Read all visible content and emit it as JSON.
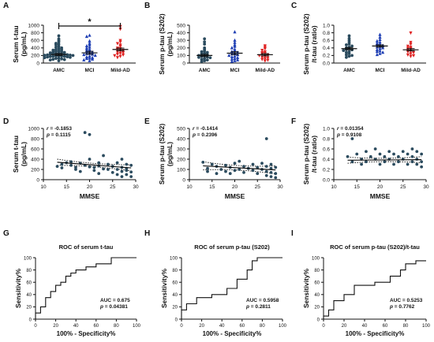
{
  "colors": {
    "amc": "#2b4b5e",
    "mci": "#1f3fb4",
    "ad": "#e02424",
    "axis": "#111111",
    "line": "#111111"
  },
  "chart_data": [
    {
      "panel": "A",
      "type": "scatter",
      "ylabel": [
        "Serum t-tau",
        "(pg/mL)"
      ],
      "categories": [
        "AMC",
        "MCI",
        "Mild-AD"
      ],
      "ylim": [
        0,
        1000
      ],
      "yticks": [
        0,
        200,
        400,
        600,
        800,
        1000
      ],
      "significance": {
        "from": "AMC",
        "to": "Mild-AD",
        "label": "*"
      },
      "series": [
        {
          "group": "AMC",
          "marker": "circle",
          "mean": 225,
          "sem": 25,
          "values": [
            720,
            640,
            600,
            560,
            520,
            500,
            480,
            440,
            420,
            400,
            380,
            360,
            350,
            340,
            320,
            310,
            300,
            290,
            280,
            270,
            260,
            250,
            245,
            240,
            235,
            230,
            220,
            215,
            210,
            205,
            200,
            195,
            190,
            185,
            180,
            175,
            170,
            165,
            160,
            150,
            140,
            130,
            120,
            110,
            100,
            90,
            80,
            60
          ]
        },
        {
          "group": "MCI",
          "marker": "triangle",
          "mean": 270,
          "sem": 40,
          "values": [
            730,
            700,
            580,
            520,
            480,
            450,
            420,
            390,
            360,
            340,
            320,
            300,
            280,
            260,
            250,
            230,
            220,
            200,
            180,
            160,
            140,
            130,
            120,
            100,
            80,
            60
          ]
        },
        {
          "group": "Mild-AD",
          "marker": "inverted-triangle",
          "mean": 360,
          "sem": 35,
          "values": [
            970,
            900,
            600,
            560,
            520,
            480,
            440,
            400,
            380,
            360,
            340,
            320,
            300,
            280,
            260,
            240,
            220,
            200,
            180,
            150
          ]
        }
      ]
    },
    {
      "panel": "B",
      "type": "scatter",
      "ylabel": [
        "Serum p-tau (S202)",
        "(pg/mL)"
      ],
      "categories": [
        "AMC",
        "MCI",
        "Mild-AD"
      ],
      "ylim": [
        0,
        500
      ],
      "yticks": [
        0,
        100,
        200,
        300,
        400,
        500
      ],
      "series": [
        {
          "group": "AMC",
          "marker": "circle",
          "mean": 100,
          "sem": 15,
          "values": [
            320,
            280,
            250,
            200,
            180,
            160,
            150,
            140,
            130,
            120,
            110,
            100,
            95,
            90,
            80,
            75,
            70,
            60,
            50,
            40,
            30,
            20
          ]
        },
        {
          "group": "MCI",
          "marker": "triangle",
          "mean": 130,
          "sem": 20,
          "values": [
            410,
            300,
            270,
            240,
            220,
            200,
            180,
            160,
            150,
            140,
            130,
            120,
            110,
            100,
            90,
            80,
            70,
            60,
            50,
            40,
            30,
            20
          ]
        },
        {
          "group": "Mild-AD",
          "marker": "inverted-triangle",
          "mean": 110,
          "sem": 15,
          "values": [
            230,
            210,
            190,
            170,
            150,
            140,
            130,
            120,
            110,
            100,
            90,
            80,
            70,
            60,
            50,
            40,
            30
          ]
        }
      ]
    },
    {
      "panel": "C",
      "type": "scatter",
      "ylabel": [
        "Serum p-tau (S202)",
        "/t-tau (ratio)"
      ],
      "categories": [
        "AMC",
        "MCI",
        "Mild-AD"
      ],
      "ylim": [
        0,
        1.0
      ],
      "yticks": [
        0.0,
        0.2,
        0.4,
        0.6,
        0.8,
        1.0
      ],
      "series": [
        {
          "group": "AMC",
          "marker": "circle",
          "mean": 0.38,
          "sem": 0.03,
          "values": [
            0.72,
            0.65,
            0.6,
            0.55,
            0.5,
            0.48,
            0.45,
            0.42,
            0.4,
            0.38,
            0.36,
            0.35,
            0.33,
            0.3,
            0.28,
            0.25,
            0.22,
            0.2,
            0.18,
            0.15
          ]
        },
        {
          "group": "MCI",
          "marker": "triangle",
          "mean": 0.45,
          "sem": 0.03,
          "values": [
            0.75,
            0.68,
            0.62,
            0.58,
            0.55,
            0.52,
            0.5,
            0.48,
            0.46,
            0.44,
            0.42,
            0.4,
            0.38,
            0.35,
            0.32,
            0.3,
            0.28,
            0.25,
            0.22
          ]
        },
        {
          "group": "Mild-AD",
          "marker": "inverted-triangle",
          "mean": 0.35,
          "sem": 0.03,
          "values": [
            0.8,
            0.55,
            0.5,
            0.45,
            0.42,
            0.4,
            0.38,
            0.35,
            0.32,
            0.3,
            0.28,
            0.25,
            0.22,
            0.2,
            0.18
          ]
        }
      ]
    },
    {
      "panel": "D",
      "type": "scatter",
      "ylabel": [
        "Serum t-tau",
        "(pg/mL)"
      ],
      "xlabel": "MMSE",
      "xlim": [
        10,
        30
      ],
      "xticks": [
        10,
        15,
        20,
        25,
        30
      ],
      "ylim": [
        0,
        1000
      ],
      "yticks": [
        0,
        200,
        400,
        600,
        800,
        1000
      ],
      "stats": [
        "r  = -0.1853",
        "p  = 0.1115"
      ],
      "fit": {
        "x": [
          13,
          29
        ],
        "y": [
          340,
          230
        ],
        "band": [
          60,
          55
        ]
      },
      "points": [
        [
          13,
          260
        ],
        [
          14,
          300
        ],
        [
          14,
          230
        ],
        [
          15,
          330
        ],
        [
          16,
          280
        ],
        [
          16,
          350
        ],
        [
          17,
          240
        ],
        [
          17,
          200
        ],
        [
          18,
          320
        ],
        [
          18,
          160
        ],
        [
          19,
          920
        ],
        [
          19,
          280
        ],
        [
          20,
          400
        ],
        [
          20,
          250
        ],
        [
          20,
          880
        ],
        [
          21,
          240
        ],
        [
          21,
          180
        ],
        [
          22,
          330
        ],
        [
          22,
          270
        ],
        [
          22,
          120
        ],
        [
          23,
          210
        ],
        [
          23,
          470
        ],
        [
          24,
          300
        ],
        [
          24,
          200
        ],
        [
          25,
          260
        ],
        [
          25,
          140
        ],
        [
          26,
          330
        ],
        [
          26,
          200
        ],
        [
          26,
          100
        ],
        [
          27,
          400
        ],
        [
          27,
          240
        ],
        [
          27,
          160
        ],
        [
          27,
          60
        ],
        [
          28,
          300
        ],
        [
          28,
          220
        ],
        [
          28,
          180
        ],
        [
          28,
          100
        ],
        [
          29,
          280
        ],
        [
          29,
          150
        ],
        [
          29,
          60
        ]
      ]
    },
    {
      "panel": "E",
      "type": "scatter",
      "ylabel": [
        "Serum p-tau (S202)",
        "(pg/mL)"
      ],
      "xlabel": "MMSE",
      "xlim": [
        10,
        30
      ],
      "xticks": [
        10,
        15,
        20,
        25,
        30
      ],
      "ylim": [
        0,
        500
      ],
      "yticks": [
        0,
        100,
        200,
        300,
        400,
        500
      ],
      "stats": [
        "r  = -0.1414",
        "p  = 0.2396"
      ],
      "fit": {
        "x": [
          13,
          29
        ],
        "y": [
          135,
          95
        ],
        "band": [
          40,
          40
        ]
      },
      "points": [
        [
          13,
          170
        ],
        [
          14,
          110
        ],
        [
          14,
          80
        ],
        [
          15,
          150
        ],
        [
          16,
          130
        ],
        [
          16,
          60
        ],
        [
          17,
          100
        ],
        [
          18,
          140
        ],
        [
          18,
          80
        ],
        [
          19,
          120
        ],
        [
          19,
          60
        ],
        [
          20,
          160
        ],
        [
          20,
          90
        ],
        [
          21,
          180
        ],
        [
          21,
          100
        ],
        [
          22,
          130
        ],
        [
          22,
          70
        ],
        [
          23,
          110
        ],
        [
          24,
          150
        ],
        [
          24,
          90
        ],
        [
          25,
          120
        ],
        [
          25,
          60
        ],
        [
          26,
          160
        ],
        [
          26,
          100
        ],
        [
          27,
          400
        ],
        [
          27,
          130
        ],
        [
          27,
          80
        ],
        [
          27,
          40
        ],
        [
          28,
          150
        ],
        [
          28,
          110
        ],
        [
          28,
          70
        ],
        [
          28,
          30
        ],
        [
          29,
          120
        ],
        [
          29,
          60
        ],
        [
          29,
          20
        ]
      ]
    },
    {
      "panel": "F",
      "type": "scatter",
      "ylabel": [
        "Serum p-tau (S202)",
        "/t-tau (ratio)"
      ],
      "xlabel": "MMSE",
      "xlim": [
        10,
        30
      ],
      "xticks": [
        10,
        15,
        20,
        25,
        30
      ],
      "ylim": [
        0,
        1.0
      ],
      "yticks": [
        0.0,
        0.2,
        0.4,
        0.6,
        0.8,
        1.0
      ],
      "stats": [
        "r  = 0.01354",
        "p  = 0.9108"
      ],
      "fit": {
        "x": [
          13,
          29
        ],
        "y": [
          0.38,
          0.39
        ],
        "band": [
          0.06,
          0.06
        ]
      },
      "points": [
        [
          13,
          0.45
        ],
        [
          14,
          0.35
        ],
        [
          14,
          0.8
        ],
        [
          15,
          0.5
        ],
        [
          16,
          0.4
        ],
        [
          16,
          0.3
        ],
        [
          17,
          0.55
        ],
        [
          17,
          0.35
        ],
        [
          18,
          0.45
        ],
        [
          19,
          0.6
        ],
        [
          19,
          0.4
        ],
        [
          20,
          0.3
        ],
        [
          20,
          0.5
        ],
        [
          21,
          0.45
        ],
        [
          21,
          0.35
        ],
        [
          22,
          0.55
        ],
        [
          22,
          0.4
        ],
        [
          23,
          0.3
        ],
        [
          23,
          0.5
        ],
        [
          24,
          0.45
        ],
        [
          24,
          0.35
        ],
        [
          25,
          0.55
        ],
        [
          25,
          0.4
        ],
        [
          26,
          0.5
        ],
        [
          26,
          0.3
        ],
        [
          27,
          0.6
        ],
        [
          27,
          0.45
        ],
        [
          27,
          0.35
        ],
        [
          28,
          0.55
        ],
        [
          28,
          0.4
        ],
        [
          28,
          0.3
        ],
        [
          29,
          0.5
        ],
        [
          29,
          0.35
        ],
        [
          29,
          0.25
        ]
      ]
    },
    {
      "panel": "G",
      "type": "line",
      "title": "ROC of serum t-tau",
      "ylabel": "Sensitivity%",
      "xlabel": "100% - Specificity%",
      "xlim": [
        0,
        100
      ],
      "ylim": [
        0,
        100
      ],
      "xticks": [
        0,
        20,
        40,
        60,
        80,
        100
      ],
      "yticks": [
        0,
        20,
        40,
        60,
        80,
        100
      ],
      "stats": [
        "AUC = 0.675",
        "p  = 0.04381"
      ],
      "x": [
        0,
        0,
        5,
        5,
        10,
        10,
        15,
        15,
        20,
        20,
        25,
        25,
        30,
        30,
        35,
        35,
        40,
        40,
        50,
        50,
        60,
        60,
        75,
        75,
        100
      ],
      "y": [
        0,
        10,
        10,
        20,
        20,
        35,
        35,
        45,
        45,
        55,
        55,
        60,
        60,
        70,
        70,
        75,
        75,
        80,
        80,
        85,
        85,
        90,
        90,
        100,
        100
      ]
    },
    {
      "panel": "H",
      "type": "line",
      "title": "ROC of serum p-tau (S202)",
      "ylabel": "Sensitivity%",
      "xlabel": "100% - Specificity%",
      "xlim": [
        0,
        100
      ],
      "ylim": [
        0,
        100
      ],
      "xticks": [
        0,
        20,
        40,
        60,
        80,
        100
      ],
      "yticks": [
        0,
        20,
        40,
        60,
        80,
        100
      ],
      "stats": [
        "AUC = 0.5958",
        "p  = 0.2811"
      ],
      "x": [
        0,
        0,
        5,
        5,
        15,
        15,
        30,
        30,
        45,
        45,
        55,
        55,
        65,
        65,
        70,
        70,
        75,
        75,
        100
      ],
      "y": [
        0,
        15,
        15,
        25,
        25,
        35,
        35,
        40,
        40,
        50,
        50,
        65,
        65,
        80,
        80,
        95,
        95,
        100,
        100
      ]
    },
    {
      "panel": "I",
      "type": "line",
      "title": "ROC of serum p-tau (S202)/t-tau",
      "ylabel": "Sensitivity%",
      "xlabel": "100% - Specificity%",
      "xlim": [
        0,
        100
      ],
      "ylim": [
        0,
        100
      ],
      "xticks": [
        0,
        20,
        40,
        60,
        80,
        100
      ],
      "yticks": [
        0,
        20,
        40,
        60,
        80,
        100
      ],
      "stats": [
        "AUC = 0.5253",
        "p  = 0.7762"
      ],
      "x": [
        0,
        0,
        5,
        5,
        10,
        10,
        20,
        20,
        30,
        30,
        50,
        50,
        65,
        65,
        75,
        75,
        80,
        80,
        90,
        90,
        100
      ],
      "y": [
        0,
        5,
        5,
        15,
        15,
        30,
        30,
        40,
        40,
        55,
        55,
        60,
        60,
        70,
        70,
        80,
        80,
        90,
        90,
        95,
        95
      ]
    }
  ]
}
